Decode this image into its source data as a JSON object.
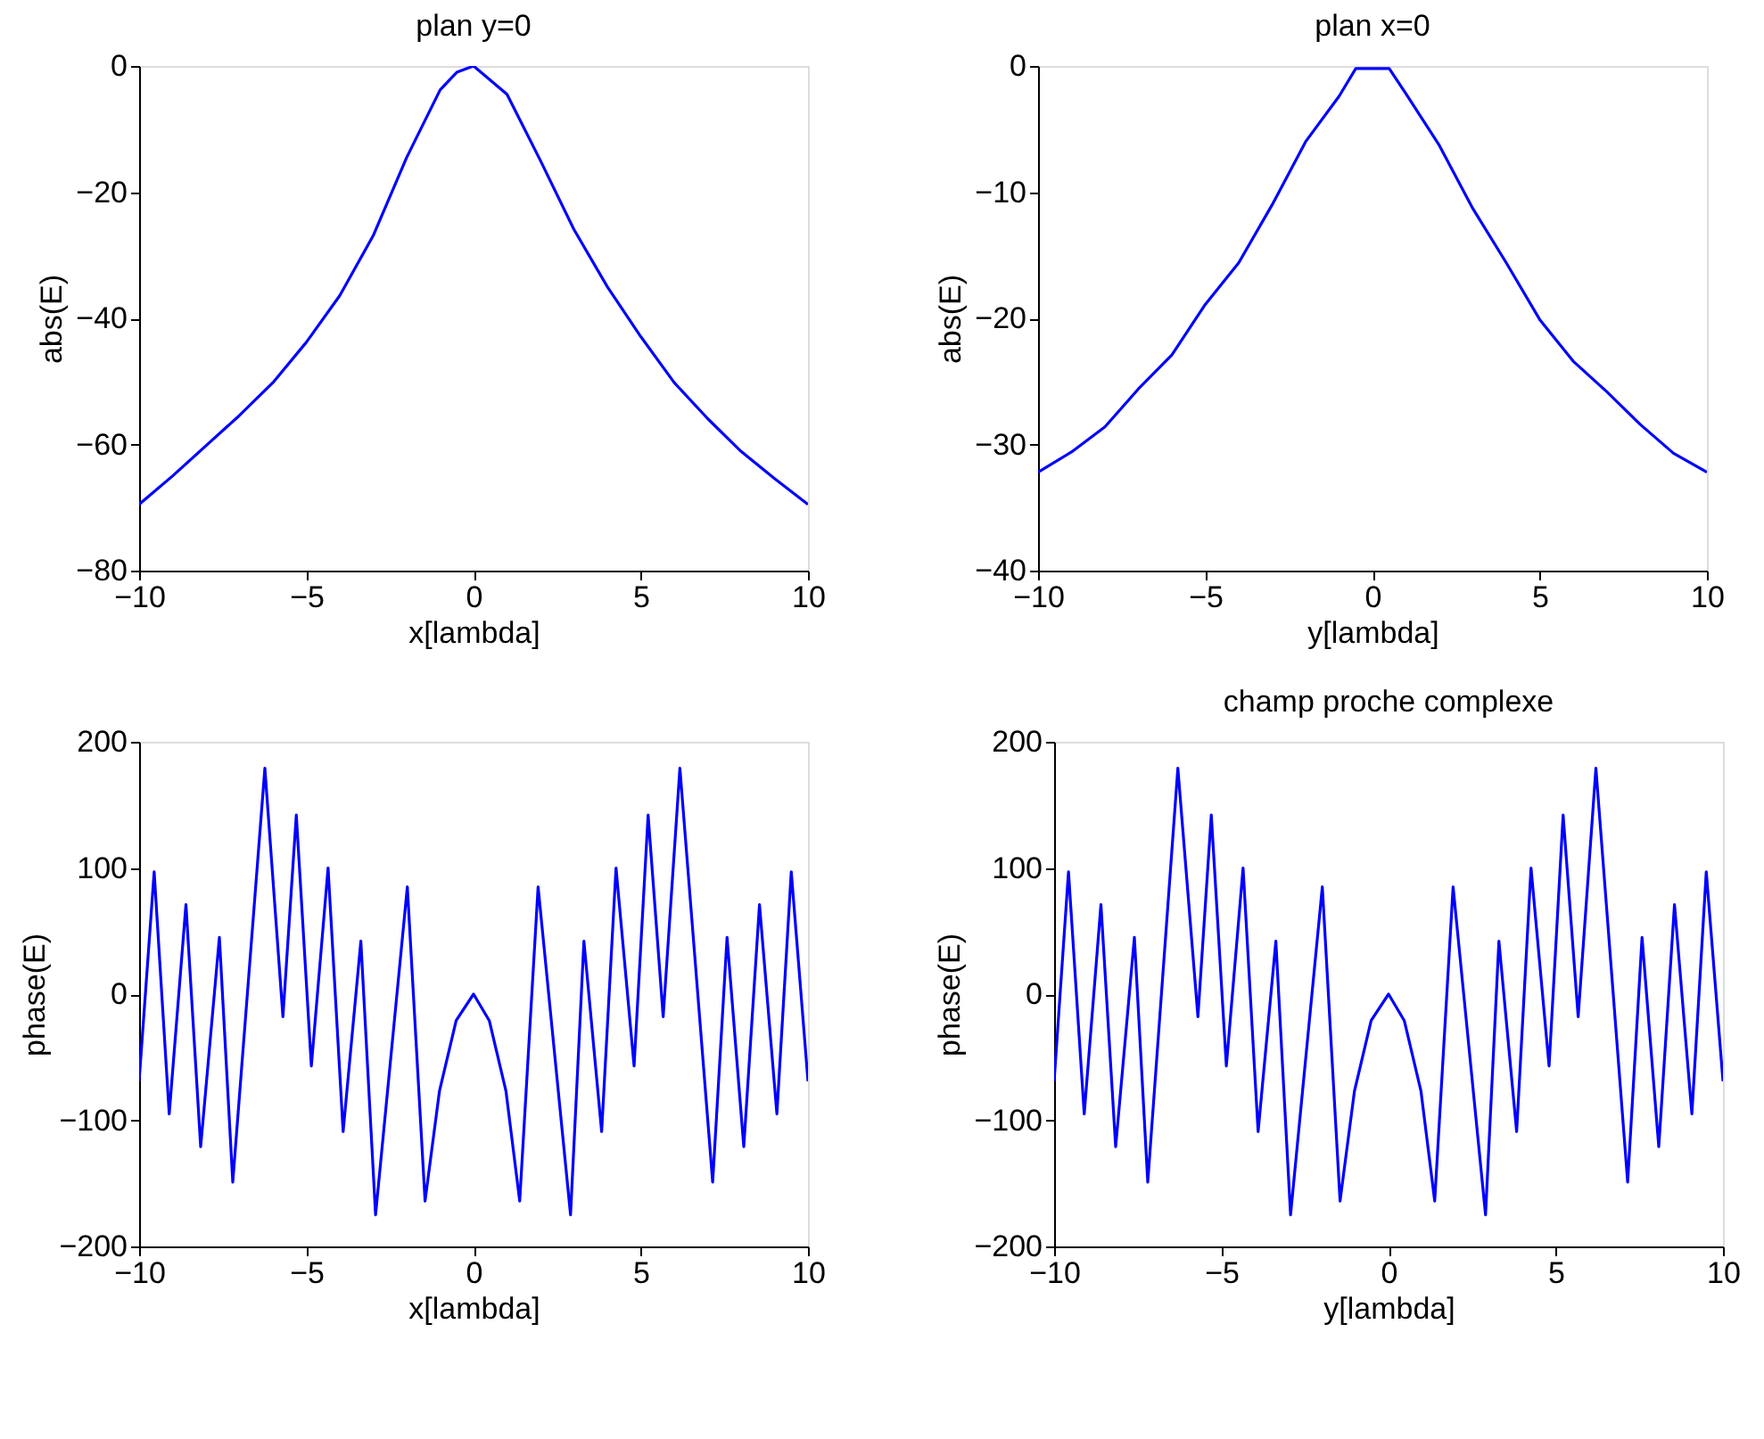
{
  "chart_data": [
    {
      "type": "line",
      "title": "plan y=0",
      "xlabel": "x[lambda]",
      "ylabel": "abs(E)",
      "xlim": [
        -10,
        10
      ],
      "xticks": [
        -10,
        -5,
        0,
        5,
        10
      ],
      "ylim": [
        -80,
        0
      ],
      "yticks": [
        -80,
        -60,
        -40,
        -20,
        0
      ],
      "grid": false,
      "x": [
        -10,
        -9,
        -8,
        -7,
        -6,
        -5,
        -4,
        -3,
        -2,
        -1,
        -0.5,
        0,
        1,
        2,
        3,
        4,
        5,
        6,
        7,
        8,
        9,
        10
      ],
      "series": [
        {
          "color": "#0000ff",
          "values": [
            -69.5,
            -65,
            -60.2,
            -55.4,
            -50.2,
            -43.8,
            -36.4,
            -26.9,
            -14.5,
            -3.8,
            -1,
            0,
            -4.5,
            -15,
            -25.9,
            -35,
            -42.9,
            -50.2,
            -55.9,
            -61.1,
            -65.4,
            -69.5
          ]
        }
      ]
    },
    {
      "type": "line",
      "title": "plan x=0",
      "xlabel": "y[lambda]",
      "ylabel": "abs(E)",
      "xlim": [
        -10,
        10
      ],
      "xticks": [
        -10,
        -5,
        0,
        5,
        10
      ],
      "ylim": [
        -40,
        0
      ],
      "yticks": [
        -40,
        -30,
        -20,
        -10,
        0
      ],
      "grid": false,
      "x": [
        -10,
        -9,
        -8,
        -7,
        -6,
        -5,
        -4,
        -3,
        -2,
        -1,
        -0.5,
        0.5,
        1,
        2,
        3,
        4,
        5,
        6,
        7,
        8,
        9,
        10
      ],
      "series": [
        {
          "color": "#0000ff",
          "values": [
            -32.2,
            -30.6,
            -28.6,
            -25.6,
            -22.9,
            -18.9,
            -15.6,
            -11,
            -6,
            -2.4,
            -0.2,
            -0.2,
            -2.2,
            -6.3,
            -11.3,
            -15.6,
            -20.1,
            -23.4,
            -25.8,
            -28.4,
            -30.7,
            -32.2
          ]
        }
      ]
    },
    {
      "type": "line",
      "xlabel": "x[lambda]",
      "ylabel": "phase(E)",
      "xlim": [
        -10,
        10
      ],
      "xticks": [
        -10,
        -5,
        0,
        5,
        10
      ],
      "ylim": [
        -200,
        200
      ],
      "yticks": [
        -200,
        -100,
        0,
        100,
        200
      ],
      "grid": false,
      "x": [
        -10,
        -9.55,
        -9.1,
        -8.6,
        -8.16,
        -7.6,
        -7.2,
        -6.24,
        -5.7,
        -5.3,
        -4.85,
        -4.35,
        -3.9,
        -3.37,
        -2.93,
        -1.98,
        -1.45,
        -1.02,
        -0.52,
        0,
        0.47,
        0.97,
        1.38,
        1.93,
        2.9,
        3.3,
        3.83,
        4.26,
        4.8,
        5.22,
        5.67,
        6.17,
        7.15,
        7.58,
        8.08,
        8.55,
        9.07,
        9.5,
        10
      ],
      "series": [
        {
          "color": "#0000ff",
          "values": [
            -69,
            97,
            -95,
            71,
            -121,
            45,
            -149,
            179,
            -18,
            142,
            -57,
            100,
            -109,
            42,
            -175,
            85,
            -164,
            -77,
            -21,
            0,
            -21,
            -77,
            -164,
            85,
            -175,
            42,
            -109,
            100,
            -57,
            142,
            -18,
            179,
            -149,
            45,
            -121,
            71,
            -95,
            97,
            -69
          ]
        }
      ]
    },
    {
      "type": "line",
      "title": "champ proche complexe",
      "xlabel": "y[lambda]",
      "ylabel": "phase(E)",
      "xlim": [
        -10,
        10
      ],
      "xticks": [
        -10,
        -5,
        0,
        5,
        10
      ],
      "ylim": [
        -200,
        200
      ],
      "yticks": [
        -200,
        -100,
        0,
        100,
        200
      ],
      "grid": false,
      "x": [
        -10,
        -9.57,
        -9.1,
        -8.6,
        -8.16,
        -7.6,
        -7.2,
        -6.3,
        -5.7,
        -5.3,
        -4.85,
        -4.35,
        -3.9,
        -3.37,
        -2.93,
        -1.98,
        -1.45,
        -1.02,
        -0.52,
        0,
        0.47,
        0.97,
        1.38,
        1.93,
        2.9,
        3.3,
        3.83,
        4.26,
        4.8,
        5.22,
        5.67,
        6.2,
        7.15,
        7.58,
        8.08,
        8.55,
        9.07,
        9.5,
        10
      ],
      "series": [
        {
          "color": "#0000ff",
          "values": [
            -69,
            97,
            -95,
            71,
            -121,
            45,
            -149,
            179,
            -18,
            142,
            -57,
            100,
            -109,
            42,
            -175,
            85,
            -164,
            -77,
            -21,
            0,
            -21,
            -77,
            -164,
            85,
            -175,
            42,
            -109,
            100,
            -57,
            142,
            -18,
            179,
            -149,
            45,
            -121,
            71,
            -95,
            97,
            -69
          ]
        }
      ]
    }
  ]
}
